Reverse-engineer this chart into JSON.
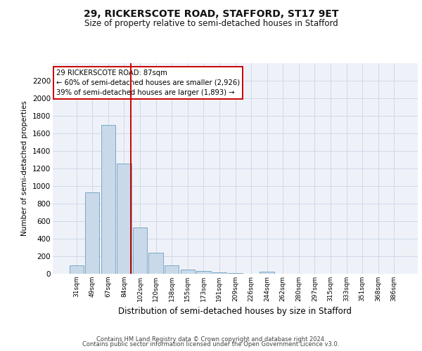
{
  "title_line1": "29, RICKERSCOTE ROAD, STAFFORD, ST17 9ET",
  "title_line2": "Size of property relative to semi-detached houses in Stafford",
  "xlabel": "Distribution of semi-detached houses by size in Stafford",
  "ylabel": "Number of semi-detached properties",
  "footer_line1": "Contains HM Land Registry data © Crown copyright and database right 2024.",
  "footer_line2": "Contains public sector information licensed under the Open Government Licence v3.0.",
  "annotation_line1": "29 RICKERSCOTE ROAD: 87sqm",
  "annotation_line2": "← 60% of semi-detached houses are smaller (2,926)",
  "annotation_line3": "39% of semi-detached houses are larger (1,893) →",
  "bar_color": "#c9d9ea",
  "bar_edge_color": "#6a9fc0",
  "vline_color": "#cc0000",
  "annotation_box_edge_color": "#cc0000",
  "grid_color": "#d0d8e8",
  "background_color": "#eef2f8",
  "categories": [
    "31sqm",
    "49sqm",
    "67sqm",
    "84sqm",
    "102sqm",
    "120sqm",
    "138sqm",
    "155sqm",
    "173sqm",
    "191sqm",
    "209sqm",
    "226sqm",
    "244sqm",
    "262sqm",
    "280sqm",
    "297sqm",
    "315sqm",
    "333sqm",
    "351sqm",
    "368sqm",
    "386sqm"
  ],
  "values": [
    95,
    930,
    1700,
    1260,
    530,
    240,
    100,
    50,
    30,
    18,
    5,
    0,
    28,
    0,
    0,
    0,
    0,
    0,
    0,
    0,
    0
  ],
  "vline_x": 3.42,
  "ylim": [
    0,
    2400
  ],
  "yticks": [
    0,
    200,
    400,
    600,
    800,
    1000,
    1200,
    1400,
    1600,
    1800,
    2000,
    2200
  ]
}
